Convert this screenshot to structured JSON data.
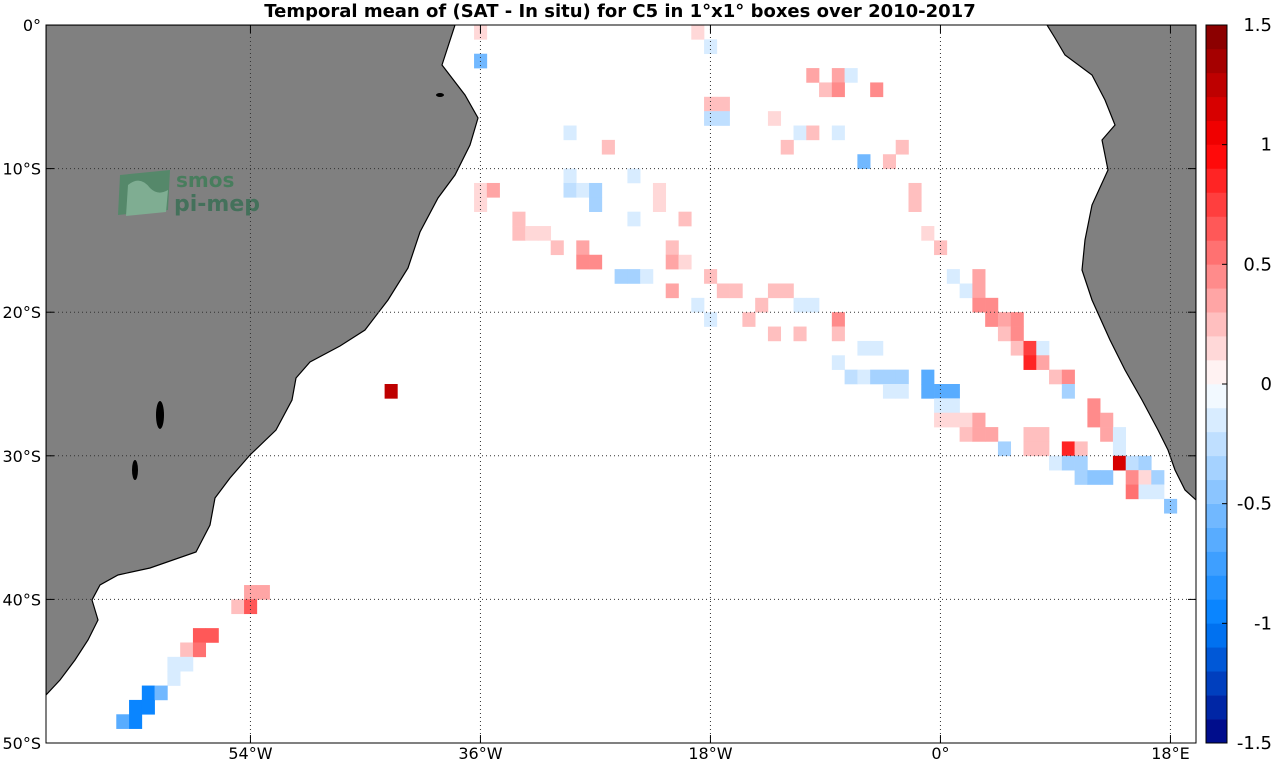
{
  "chart_data": {
    "type": "heatmap",
    "title": "Temporal mean of (SAT - In situ) for C5 in 1°x1° boxes over 2010-2017",
    "xlim": [
      -70,
      20
    ],
    "ylim": [
      -50,
      0
    ],
    "cell_size_deg": 1,
    "x_ticks": [
      {
        "v": -54,
        "label": "54°W"
      },
      {
        "v": -36,
        "label": "36°W"
      },
      {
        "v": -18,
        "label": "18°W"
      },
      {
        "v": 0,
        "label": "0°"
      },
      {
        "v": 18,
        "label": "18°E"
      }
    ],
    "y_ticks": [
      {
        "v": 0,
        "label": "0°"
      },
      {
        "v": -10,
        "label": "10°S"
      },
      {
        "v": -20,
        "label": "20°S"
      },
      {
        "v": -30,
        "label": "30°S"
      },
      {
        "v": -40,
        "label": "40°S"
      },
      {
        "v": -50,
        "label": "50°S"
      }
    ],
    "grid": true,
    "colorbar": {
      "min": -1.5,
      "max": 1.5,
      "levels": 30,
      "ticks": [
        {
          "v": 1.5,
          "label": "1.5"
        },
        {
          "v": 1,
          "label": "1"
        },
        {
          "v": 0.5,
          "label": "0.5"
        },
        {
          "v": 0,
          "label": "0"
        },
        {
          "v": -0.5,
          "label": "-0.5"
        },
        {
          "v": -1,
          "label": "-1"
        },
        {
          "v": -1.5,
          "label": "-1.5"
        }
      ]
    },
    "cells": [
      [
        -36,
        -0.5,
        0.15
      ],
      [
        -36,
        -2.5,
        -0.6
      ],
      [
        -19,
        -0.5,
        0.15
      ],
      [
        -18,
        -1.5,
        -0.15
      ],
      [
        -10,
        -3.5,
        0.35
      ],
      [
        -8,
        -3.5,
        0.35
      ],
      [
        -7,
        -3.5,
        -0.1
      ],
      [
        -9,
        -4.5,
        0.25
      ],
      [
        -8,
        -4.5,
        0.45
      ],
      [
        -5,
        -4.5,
        0.45
      ],
      [
        -18,
        -5.5,
        0.2
      ],
      [
        -17,
        -5.5,
        0.2
      ],
      [
        -18,
        -6.5,
        -0.25
      ],
      [
        -17,
        -6.5,
        -0.25
      ],
      [
        -13,
        -6.5,
        0.15
      ],
      [
        -29,
        -7.5,
        -0.15
      ],
      [
        -11,
        -7.5,
        -0.15
      ],
      [
        -10,
        -7.5,
        0.2
      ],
      [
        -8,
        -7.5,
        -0.2
      ],
      [
        -26,
        -8.5,
        0.2
      ],
      [
        -12,
        -8.5,
        0.2
      ],
      [
        -3,
        -8.5,
        0.2
      ],
      [
        -6,
        -9.5,
        -0.6
      ],
      [
        -4,
        -9.5,
        0.2
      ],
      [
        -24,
        -10.5,
        -0.15
      ],
      [
        -29,
        -10.5,
        -0.2
      ],
      [
        -36,
        -11.5,
        0.15
      ],
      [
        -35,
        -11.5,
        0.35
      ],
      [
        -29,
        -11.5,
        -0.25
      ],
      [
        -28,
        -11.5,
        -0.1
      ],
      [
        -27,
        -11.5,
        -0.3
      ],
      [
        -22,
        -11.5,
        0.15
      ],
      [
        -2,
        -11.5,
        0.25
      ],
      [
        -36,
        -12.5,
        0.15
      ],
      [
        -27,
        -12.5,
        -0.3
      ],
      [
        -22,
        -12.5,
        0.15
      ],
      [
        -2,
        -12.5,
        0.25
      ],
      [
        -33,
        -13.5,
        0.25
      ],
      [
        -24,
        -13.5,
        -0.15
      ],
      [
        -20,
        -13.5,
        0.25
      ],
      [
        -33,
        -14.5,
        0.25
      ],
      [
        -32,
        -14.5,
        0.15
      ],
      [
        -31,
        -14.5,
        0.15
      ],
      [
        -1,
        -14.5,
        0.15
      ],
      [
        -30,
        -15.5,
        0.2
      ],
      [
        -28,
        -15.5,
        0.3
      ],
      [
        -21,
        -15.5,
        0.25
      ],
      [
        0,
        -15.5,
        0.25
      ],
      [
        -28,
        -16.5,
        0.45
      ],
      [
        -27,
        -16.5,
        0.45
      ],
      [
        -21,
        -16.5,
        0.3
      ],
      [
        -20,
        -16.5,
        0.15
      ],
      [
        -25,
        -17.5,
        -0.35
      ],
      [
        -24,
        -17.5,
        -0.35
      ],
      [
        -23,
        -17.5,
        -0.15
      ],
      [
        -18,
        -17.5,
        0.2
      ],
      [
        1,
        -17.5,
        -0.1
      ],
      [
        3,
        -17.5,
        0.3
      ],
      [
        -21,
        -18.5,
        0.3
      ],
      [
        -17,
        -18.5,
        0.2
      ],
      [
        -16,
        -18.5,
        0.2
      ],
      [
        -13,
        -18.5,
        0.2
      ],
      [
        -12,
        -18.5,
        0.2
      ],
      [
        2,
        -18.5,
        -0.15
      ],
      [
        3,
        -18.5,
        0.35
      ],
      [
        -19,
        -19.5,
        -0.2
      ],
      [
        -14,
        -19.5,
        0.2
      ],
      [
        -11,
        -19.5,
        -0.2
      ],
      [
        -10,
        -19.5,
        -0.2
      ],
      [
        3,
        -19.5,
        0.45
      ],
      [
        4,
        -19.5,
        0.45
      ],
      [
        -18,
        -20.5,
        -0.1
      ],
      [
        -15,
        -20.5,
        0.2
      ],
      [
        -8,
        -20.5,
        0.4
      ],
      [
        4,
        -20.5,
        0.4
      ],
      [
        5,
        -20.5,
        0.35
      ],
      [
        6,
        -20.5,
        0.45
      ],
      [
        -13,
        -21.5,
        0.2
      ],
      [
        -11,
        -21.5,
        0.2
      ],
      [
        -8,
        -21.5,
        0.2
      ],
      [
        5,
        -21.5,
        0.2
      ],
      [
        6,
        -21.5,
        0.4
      ],
      [
        -6,
        -22.5,
        -0.2
      ],
      [
        -5,
        -22.5,
        -0.2
      ],
      [
        6,
        -22.5,
        0.25
      ],
      [
        7,
        -22.5,
        0.7
      ],
      [
        8,
        -22.5,
        -0.1
      ],
      [
        -8,
        -23.5,
        -0.1
      ],
      [
        7,
        -23.5,
        0.9
      ],
      [
        8,
        -23.5,
        0.3
      ],
      [
        -7,
        -24.5,
        -0.25
      ],
      [
        -6,
        -24.5,
        -0.1
      ],
      [
        -5,
        -24.5,
        -0.3
      ],
      [
        -4,
        -24.5,
        -0.3
      ],
      [
        -3,
        -24.5,
        -0.3
      ],
      [
        -1,
        -24.5,
        -0.7
      ],
      [
        9,
        -24.5,
        0.2
      ],
      [
        10,
        -24.5,
        0.45
      ],
      [
        -4,
        -25.5,
        -0.15
      ],
      [
        -3,
        -25.5,
        -0.15
      ],
      [
        -1,
        -25.5,
        -0.7
      ],
      [
        0,
        -25.5,
        -0.7
      ],
      [
        1,
        -25.5,
        -0.7
      ],
      [
        10,
        -25.5,
        -0.35
      ],
      [
        -43,
        -25.5,
        1.3
      ],
      [
        0,
        -26.5,
        -0.2
      ],
      [
        1,
        -26.5,
        -0.2
      ],
      [
        12,
        -26.5,
        0.45
      ],
      [
        0,
        -27.5,
        0.15
      ],
      [
        1,
        -27.5,
        0.15
      ],
      [
        2,
        -27.5,
        0.15
      ],
      [
        3,
        -27.5,
        0.3
      ],
      [
        12,
        -27.5,
        0.45
      ],
      [
        13,
        -27.5,
        0.3
      ],
      [
        2,
        -28.5,
        0.2
      ],
      [
        3,
        -28.5,
        0.35
      ],
      [
        4,
        -28.5,
        0.35
      ],
      [
        7,
        -28.5,
        0.25
      ],
      [
        8,
        -28.5,
        0.25
      ],
      [
        13,
        -28.5,
        0.3
      ],
      [
        14,
        -28.5,
        -0.15
      ],
      [
        5,
        -29.5,
        -0.4
      ],
      [
        7,
        -29.5,
        0.25
      ],
      [
        8,
        -29.5,
        0.25
      ],
      [
        10,
        -29.5,
        0.8
      ],
      [
        11,
        -29.5,
        0.2
      ],
      [
        14,
        -29.5,
        -0.15
      ],
      [
        9,
        -30.5,
        -0.2
      ],
      [
        10,
        -30.5,
        -0.3
      ],
      [
        11,
        -30.5,
        -0.3
      ],
      [
        14,
        -30.5,
        1.1
      ],
      [
        15,
        -30.5,
        -0.25
      ],
      [
        16,
        -30.5,
        -0.35
      ],
      [
        11,
        -31.5,
        -0.3
      ],
      [
        12,
        -31.5,
        -0.5
      ],
      [
        13,
        -31.5,
        -0.5
      ],
      [
        15,
        -31.5,
        0.45
      ],
      [
        16,
        -31.5,
        0.15
      ],
      [
        17,
        -31.5,
        -0.3
      ],
      [
        15,
        -32.5,
        0.5
      ],
      [
        16,
        -32.5,
        -0.15
      ],
      [
        17,
        -32.5,
        -0.15
      ],
      [
        18,
        -33.5,
        -0.5
      ],
      [
        -54,
        -39.5,
        0.3
      ],
      [
        -53,
        -39.5,
        0.3
      ],
      [
        -55,
        -40.5,
        0.2
      ],
      [
        -54,
        -40.5,
        0.6
      ],
      [
        -58,
        -42.5,
        0.6
      ],
      [
        -57,
        -42.5,
        0.6
      ],
      [
        -59,
        -43.5,
        0.2
      ],
      [
        -58,
        -43.5,
        0.5
      ],
      [
        -60,
        -44.5,
        -0.15
      ],
      [
        -59,
        -44.5,
        -0.15
      ],
      [
        -60,
        -45.5,
        -0.15
      ],
      [
        -62,
        -46.5,
        -0.9
      ],
      [
        -61,
        -46.5,
        -0.6
      ],
      [
        -63,
        -47.5,
        -0.9
      ],
      [
        -62,
        -47.5,
        -0.9
      ],
      [
        -64,
        -48.5,
        -0.7
      ],
      [
        -63,
        -48.5,
        -0.9
      ]
    ]
  },
  "colors": {
    "land": "#808080",
    "coast": "#000000",
    "grid": "#333333",
    "background": "#ffffff"
  },
  "logo": {
    "line1": "smos",
    "line2": "pi-mep"
  }
}
